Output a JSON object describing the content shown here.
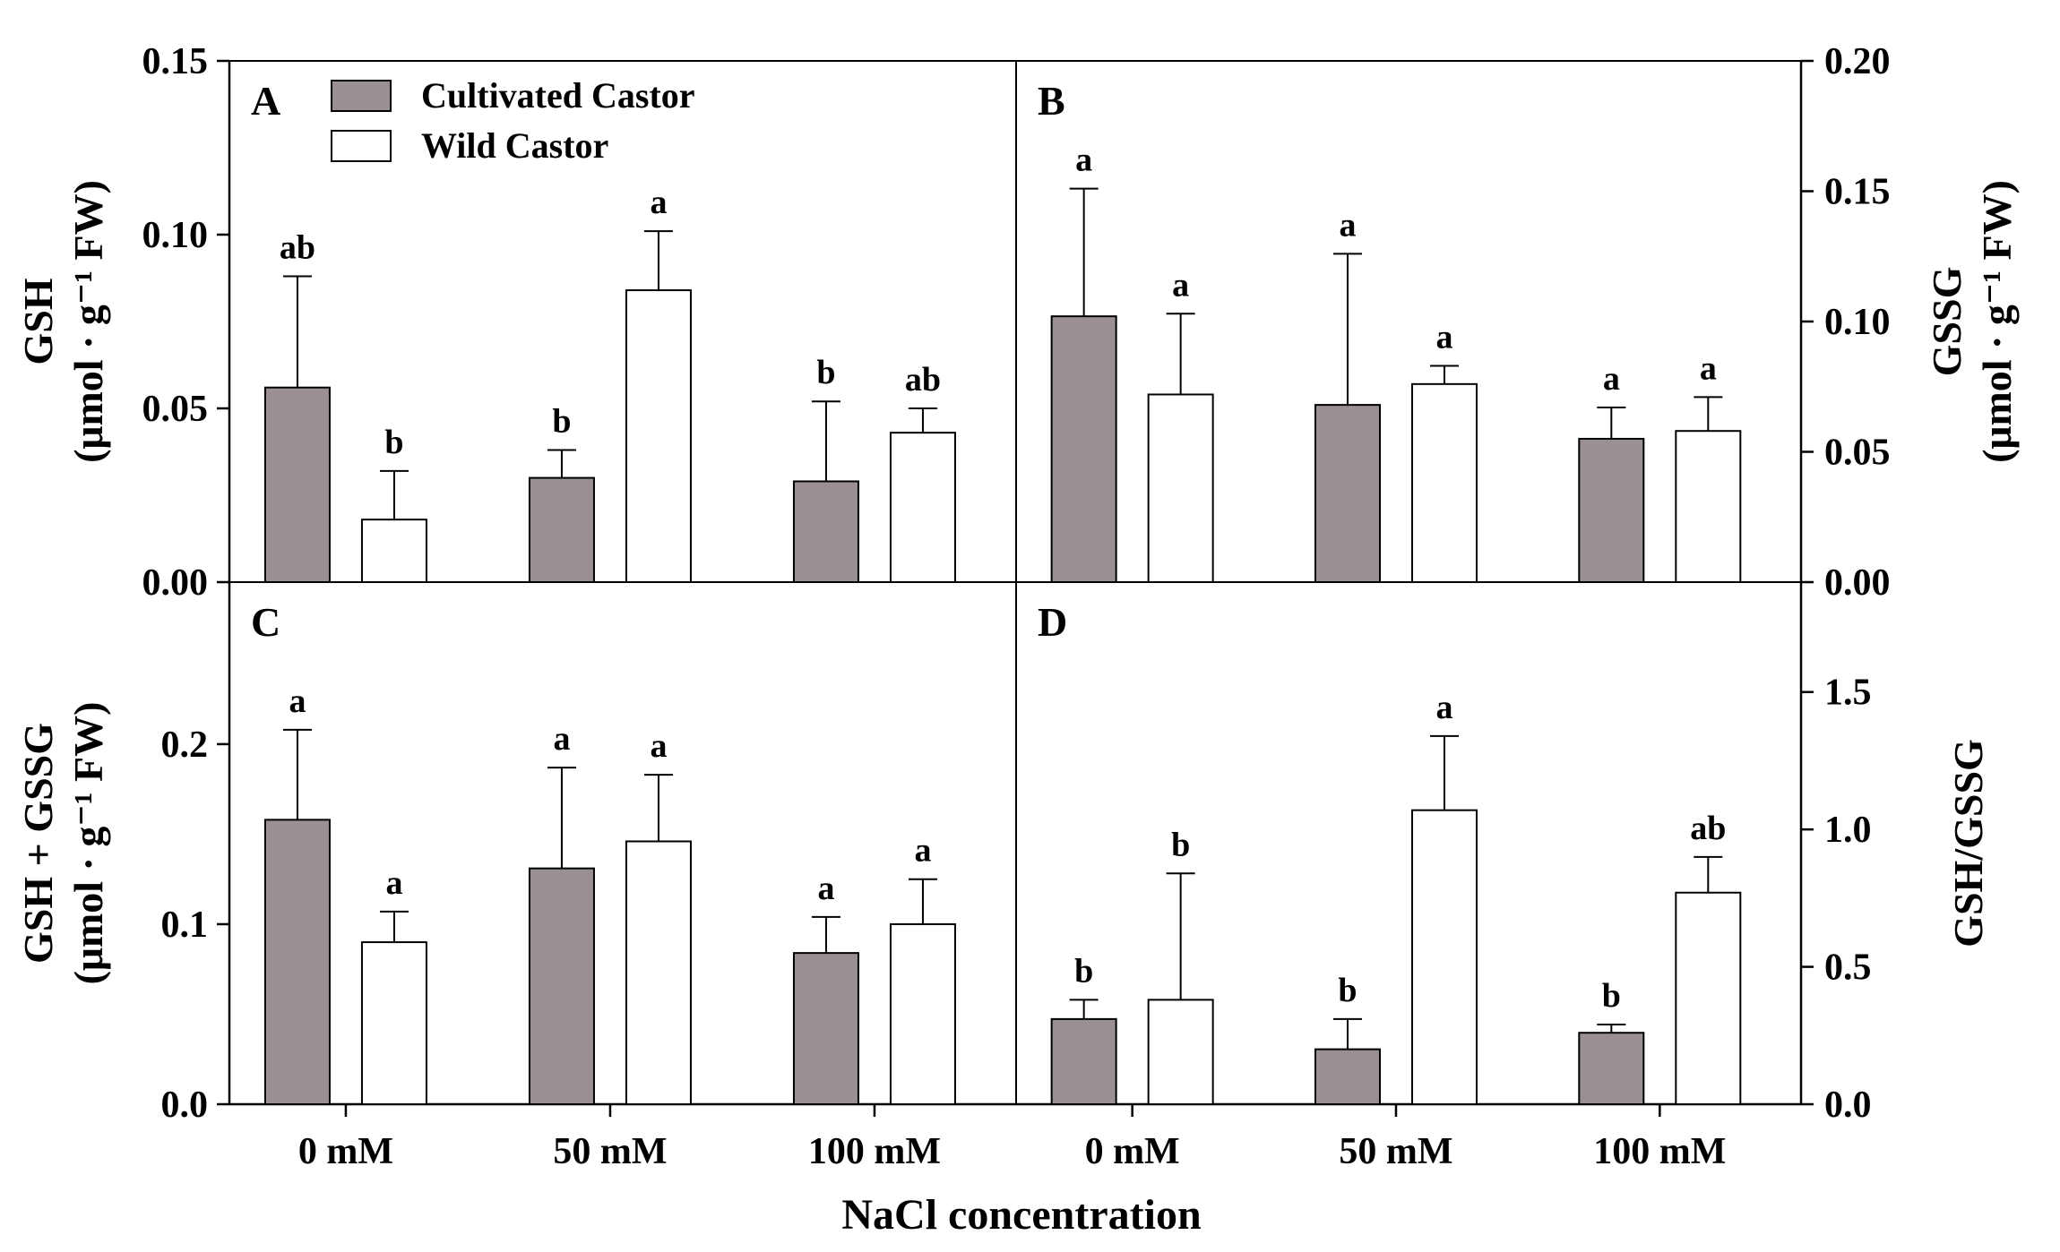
{
  "figure": {
    "xlabel": "NaCl concentration",
    "legend": [
      {
        "label": "Cultivated Castor",
        "color": "#9a9092"
      },
      {
        "label": "Wild Castor",
        "color": "#ffffff"
      }
    ]
  },
  "chart_data": [
    {
      "panel": "A",
      "type": "bar",
      "title": "",
      "ylabel_line1": "GSH",
      "ylabel_line2": "(μmol · g⁻¹ FW)",
      "yaxis_side": "left",
      "categories": [
        "0 mM",
        "50 mM",
        "100 mM"
      ],
      "ylim": [
        0,
        0.15
      ],
      "yticks": [
        0.0,
        0.05,
        0.1,
        0.15
      ],
      "ytick_labels": [
        "0.00",
        "0.05",
        "0.10",
        "0.15"
      ],
      "series": [
        {
          "name": "Cultivated Castor",
          "values": [
            0.056,
            0.03,
            0.029
          ],
          "errors": [
            0.032,
            0.008,
            0.023
          ],
          "labels": [
            "ab",
            "b",
            "b"
          ]
        },
        {
          "name": "Wild Castor",
          "values": [
            0.018,
            0.084,
            0.043
          ],
          "errors": [
            0.014,
            0.017,
            0.007
          ],
          "labels": [
            "b",
            "a",
            "ab"
          ]
        }
      ]
    },
    {
      "panel": "B",
      "type": "bar",
      "title": "",
      "ylabel_line1": "GSSG",
      "ylabel_line2": "(μmol · g⁻¹ FW)",
      "yaxis_side": "right",
      "categories": [
        "0 mM",
        "50 mM",
        "100 mM"
      ],
      "ylim": [
        0,
        0.2
      ],
      "yticks": [
        0.0,
        0.05,
        0.1,
        0.15,
        0.2
      ],
      "ytick_labels": [
        "0.00",
        "0.05",
        "0.10",
        "0.15",
        "0.20"
      ],
      "series": [
        {
          "name": "Cultivated Castor",
          "values": [
            0.102,
            0.068,
            0.055
          ],
          "errors": [
            0.049,
            0.058,
            0.012
          ],
          "labels": [
            "a",
            "a",
            "a"
          ]
        },
        {
          "name": "Wild Castor",
          "values": [
            0.072,
            0.076,
            0.058
          ],
          "errors": [
            0.031,
            0.007,
            0.013
          ],
          "labels": [
            "a",
            "a",
            "a"
          ]
        }
      ]
    },
    {
      "panel": "C",
      "type": "bar",
      "title": "",
      "ylabel_line1": "GSH + GSSG",
      "ylabel_line2": "(μmol · g⁻¹ FW)",
      "yaxis_side": "left",
      "categories": [
        "0 mM",
        "50 mM",
        "100 mM"
      ],
      "ylim": [
        0,
        0.29
      ],
      "yticks": [
        0.0,
        0.1,
        0.2
      ],
      "ytick_labels": [
        "0.0",
        "0.1",
        "0.2"
      ],
      "series": [
        {
          "name": "Cultivated Castor",
          "values": [
            0.158,
            0.131,
            0.084
          ],
          "errors": [
            0.05,
            0.056,
            0.02
          ],
          "labels": [
            "a",
            "a",
            "a"
          ]
        },
        {
          "name": "Wild Castor",
          "values": [
            0.09,
            0.146,
            0.1
          ],
          "errors": [
            0.017,
            0.037,
            0.025
          ],
          "labels": [
            "a",
            "a",
            "a"
          ]
        }
      ]
    },
    {
      "panel": "D",
      "type": "bar",
      "title": "",
      "ylabel_line1": "GSH/GSSG",
      "ylabel_line2": "",
      "yaxis_side": "right",
      "categories": [
        "0 mM",
        "50 mM",
        "100 mM"
      ],
      "ylim": [
        0,
        1.9
      ],
      "yticks": [
        0.0,
        0.5,
        1.0,
        1.5
      ],
      "ytick_labels": [
        "0.0",
        "0.5",
        "1.0",
        "1.5"
      ],
      "series": [
        {
          "name": "Cultivated Castor",
          "values": [
            0.31,
            0.2,
            0.26
          ],
          "errors": [
            0.07,
            0.11,
            0.03
          ],
          "labels": [
            "b",
            "b",
            "b"
          ]
        },
        {
          "name": "Wild Castor",
          "values": [
            0.38,
            1.07,
            0.77
          ],
          "errors": [
            0.46,
            0.27,
            0.13
          ],
          "labels": [
            "b",
            "a",
            "ab"
          ]
        }
      ]
    }
  ]
}
